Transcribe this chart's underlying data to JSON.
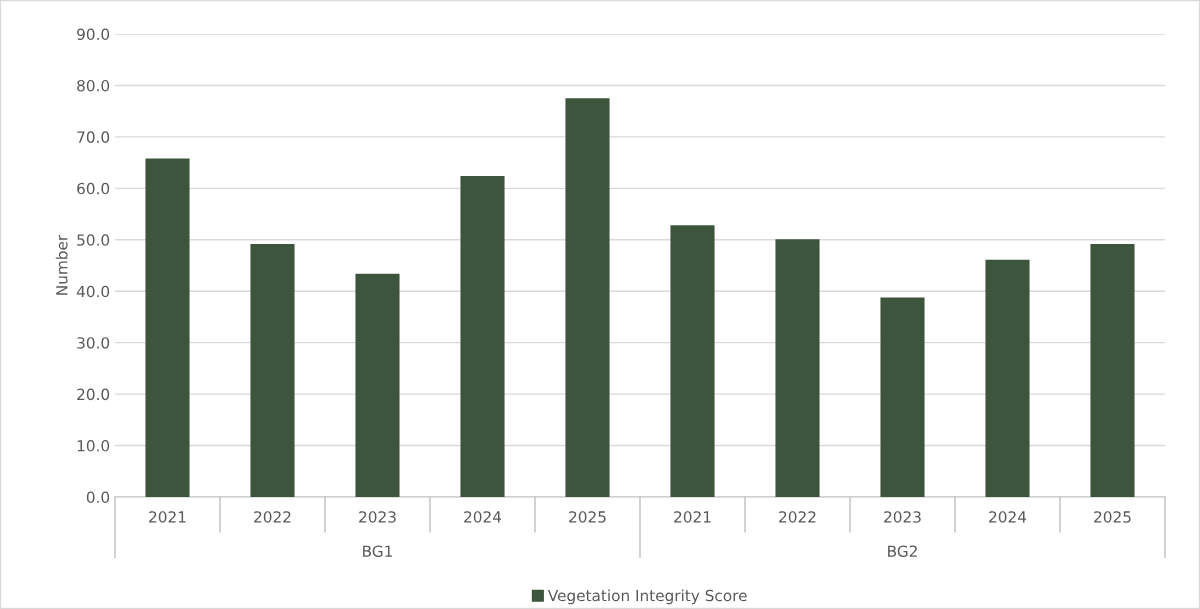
{
  "chart_data": {
    "type": "bar",
    "ylabel": "Number",
    "categories": [
      "2021",
      "2022",
      "2023",
      "2024",
      "2025",
      "2021",
      "2022",
      "2023",
      "2024",
      "2025"
    ],
    "series": [
      {
        "name": "Vegetation Integrity Score",
        "color": "#3d553c",
        "values": [
          65.8,
          49.2,
          43.4,
          62.4,
          77.5,
          52.8,
          50.1,
          38.8,
          46.1,
          49.2
        ]
      }
    ],
    "annotations": [
      "BG1",
      "BG2"
    ],
    "ylim": [
      0,
      90
    ],
    "yticks": [
      {
        "value": 0,
        "label": "0.0"
      },
      {
        "value": 10,
        "label": "10.0"
      },
      {
        "value": 20,
        "label": "20.0"
      },
      {
        "value": 30,
        "label": "30.0"
      },
      {
        "value": 40,
        "label": "40.0"
      },
      {
        "value": 50,
        "label": "50.0"
      },
      {
        "value": 60,
        "label": "60.0"
      },
      {
        "value": 70,
        "label": "70.0"
      },
      {
        "value": 80,
        "label": "80.0"
      },
      {
        "value": 90,
        "label": "90.0"
      }
    ],
    "grid": "y",
    "legend": "bottom"
  }
}
